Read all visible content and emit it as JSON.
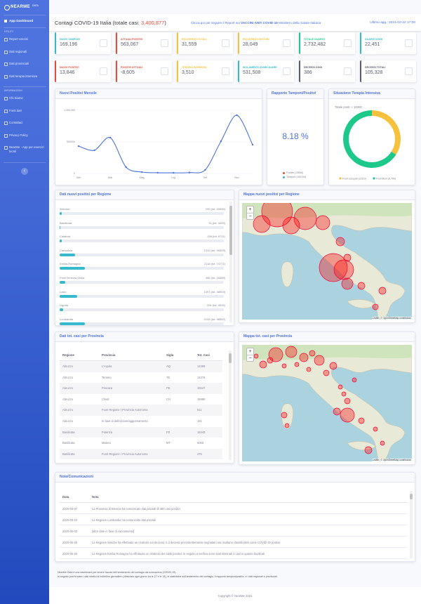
{
  "sidebar": {
    "brand": "NEARME",
    "brand_sup": "DATA",
    "active": "App Dashboard",
    "sections": [
      {
        "heading": "UTILITY",
        "items": [
          "Report vaccini",
          "Dati regionali",
          "Dati provinciali",
          "Dati terapia intensiva"
        ]
      },
      {
        "heading": "INFORMAZIONI",
        "items": [
          "Chi Siamo",
          "Fonti dati",
          "Contattaci",
          "Privacy Policy",
          "NearMe - App per esercizi locali"
        ]
      }
    ],
    "toggle": "‹"
  },
  "header": {
    "title_prefix": "Contagi COVID-19 Italia (totale casi:",
    "total": "3,400,877",
    "title_suffix": ")",
    "link_prefix": "Clicca qui per seguire il Report sui",
    "link_bold": "VACCINI ANTI COVID-19",
    "link_suffix": "Ministero della Salute Italiana",
    "updated": "Ultimo agg.: 2021-03-22 17:00"
  },
  "cards": [
    {
      "label": "NUOVI TAMPONI",
      "value": "169,196",
      "color": "#36b9cc"
    },
    {
      "label": "ATTUALI POSITIVI",
      "value": "563,067",
      "color": "#e74a3b"
    },
    {
      "label": "RICOVERATI TOTALI",
      "value": "31,559",
      "color": "#f6c23e"
    },
    {
      "label": "RICOVERATI SINTOMI",
      "value": "28,049",
      "color": "#f6c23e"
    },
    {
      "label": "TOTALE GUARITI",
      "value": "2,732,482",
      "color": "#1cc88a"
    },
    {
      "label": "GUARITI OGGI",
      "value": "22,451",
      "color": "#36b9cc"
    },
    {
      "label": "NUOVI POSITIVI",
      "value": "13,846",
      "color": "#e74a3b"
    },
    {
      "label": "POSITIVI ATTUALI",
      "value": "-8,605",
      "color": "#e74a3b"
    },
    {
      "label": "TERAPIA INTENSIVA",
      "value": "3,510",
      "color": "#f6c23e"
    },
    {
      "label": "ISOLAMENTO DOMICILIARE",
      "value": "531,508",
      "color": "#36b9cc"
    },
    {
      "label": "DECESSI OGGI",
      "value": "386",
      "color": "#5a5c69"
    },
    {
      "label": "DECESSI TOTALI",
      "value": "105,328",
      "color": "#5a5c69"
    }
  ],
  "chart_data": [
    {
      "type": "line",
      "title": "Nuovi Positivi Mensile",
      "categories": [
        "Gen",
        null,
        "Mar",
        null,
        "Mag",
        null,
        "Lug",
        null,
        "Set",
        null,
        "Nov",
        null
      ],
      "values": [
        433000,
        367000,
        567000,
        100000,
        22000,
        12000,
        10000,
        14000,
        56000,
        510000,
        922000,
        455000
      ],
      "color": "#4e73df",
      "ylim": [
        0,
        1050000
      ],
      "yticks": [
        0,
        500000,
        {
          "value": 1000000,
          "label": "1,000,000"
        }
      ],
      "grid": true
    },
    {
      "type": "pie",
      "title": "Situazione Terapia Intensiva",
      "subtitle": "Totale posti: + 10300",
      "categories": [
        "Posti occupati (3,510)",
        "Posti liberi (6,790)"
      ],
      "values": [
        3510,
        6790
      ],
      "colors": [
        "#f6c23e",
        "#1cc88a"
      ],
      "donut": true
    }
  ],
  "ratio": {
    "title": "Rapporto Tamponi/Positivi",
    "value": "8.18 %",
    "legend": [
      {
        "label": "Positivi (13846)",
        "color": "#e74a3b"
      },
      {
        "label": "Tamponi (169196)",
        "color": "#36b9cc"
      }
    ]
  },
  "regions": {
    "title": "Dati nuovi positivi per Regione",
    "scale_max": 13846,
    "color": "#36b9cc",
    "rows": [
      {
        "name": "Abruzzo",
        "value": 190,
        "label": "190 (tot. 15909)"
      },
      {
        "name": "Basilicata",
        "value": 24,
        "label": "24 (tot. 4459)"
      },
      {
        "name": "Calabria",
        "value": 156,
        "label": "156 (tot. 6711)"
      },
      {
        "name": "Campania",
        "value": 1312,
        "label": "1312 (tot. 99329)"
      },
      {
        "name": "Emilia-Romagna",
        "value": 2118,
        "label": "2118 (tot. 74771)"
      },
      {
        "name": "Friuli Venezia Giulia",
        "value": 495,
        "label": "495 (tot. 16369)"
      },
      {
        "name": "Lazio",
        "value": 1497,
        "label": "1497 (tot. 48503)"
      },
      {
        "name": "Liguria",
        "value": 294,
        "label": "294 (tot. 4024)"
      },
      {
        "name": "Lombardia",
        "value": 2105,
        "label": "2105 (tot. 98562)"
      }
    ]
  },
  "map_regions": {
    "title": "Mappa nuovi positivi per Regione",
    "zoom_in": "+",
    "zoom_out": "−",
    "attribution": "Leaflet | © OpenStreetMap contributors"
  },
  "provinces": {
    "title": "Dati tot. casi per Provincia",
    "header": [
      "Regione",
      "Provincia",
      "Sigla",
      "Tot. Casi"
    ],
    "rows": [
      [
        "Abruzzo",
        "L'Aquila",
        "AQ",
        "14399"
      ],
      [
        "Abruzzo",
        "Teramo",
        "TE",
        "14376"
      ],
      [
        "Abruzzo",
        "Pescara",
        "PE",
        "16647"
      ],
      [
        "Abruzzo",
        "Chieti",
        "CH",
        "15990"
      ],
      [
        "Abruzzo",
        "Fuori Regione / Provincia Autonoma",
        null,
        "511"
      ],
      [
        "Abruzzo",
        "In fase di definizione/aggiornamento",
        null,
        "191"
      ],
      [
        "Basilicata",
        "Potenza",
        "PZ",
        "15342"
      ],
      [
        "Basilicata",
        "Matera",
        "MT",
        "6065"
      ],
      [
        "Basilicata",
        "Fuori Regione / Provincia Autonoma",
        null,
        "475"
      ]
    ]
  },
  "map_provinces": {
    "title": "Mappa tot. casi per Provincia",
    "zoom_in": "+",
    "zoom_out": "−",
    "attribution": "Leaflet | © OpenStreetMap contributors"
  },
  "notes": {
    "title": "Note/Comunicazioni",
    "header": [
      "Data",
      "Nota"
    ],
    "rows": [
      [
        "2020-03-07",
        "La Provincia di Brescia ha comunicato dati parziali di 300 casi positivi"
      ],
      [
        "2020-03-10",
        "La Regione Lombardia ha comunicato dati parziali"
      ],
      [
        "2020-06-03",
        "[altre date in fase di caricamento]"
      ],
      [
        "2020-06-25",
        "La Regione Marche ha effettuato un ricalcolo sui decessi: n.3 decessi precedentemente segnalati non risultano classificabili come COVID-19 positivi"
      ],
      [
        "2020-06-26",
        "La Regione Emilia Romagna ha effettuato un ricalcolo dei totali positivi: in seguito a verifica sono stati eliminati 4 casi in quanto duplicati"
      ]
    ]
  },
  "footer": {
    "lines": [
      "NearMe Data è una dashboard per tenere traccia dell'andamento del contagio da coronavirus (COVID-19).",
      "In seguito puoi trovare i dati relativi al bollettino giornaliero (rilasciato ogni giorno fra le 17 e le 18), le statistiche sull'andamento del contagio, il rapporto tamponi/positivi, e i dati regionali e provinciali."
    ],
    "copyright": "Copyright © NearMe 2021"
  }
}
